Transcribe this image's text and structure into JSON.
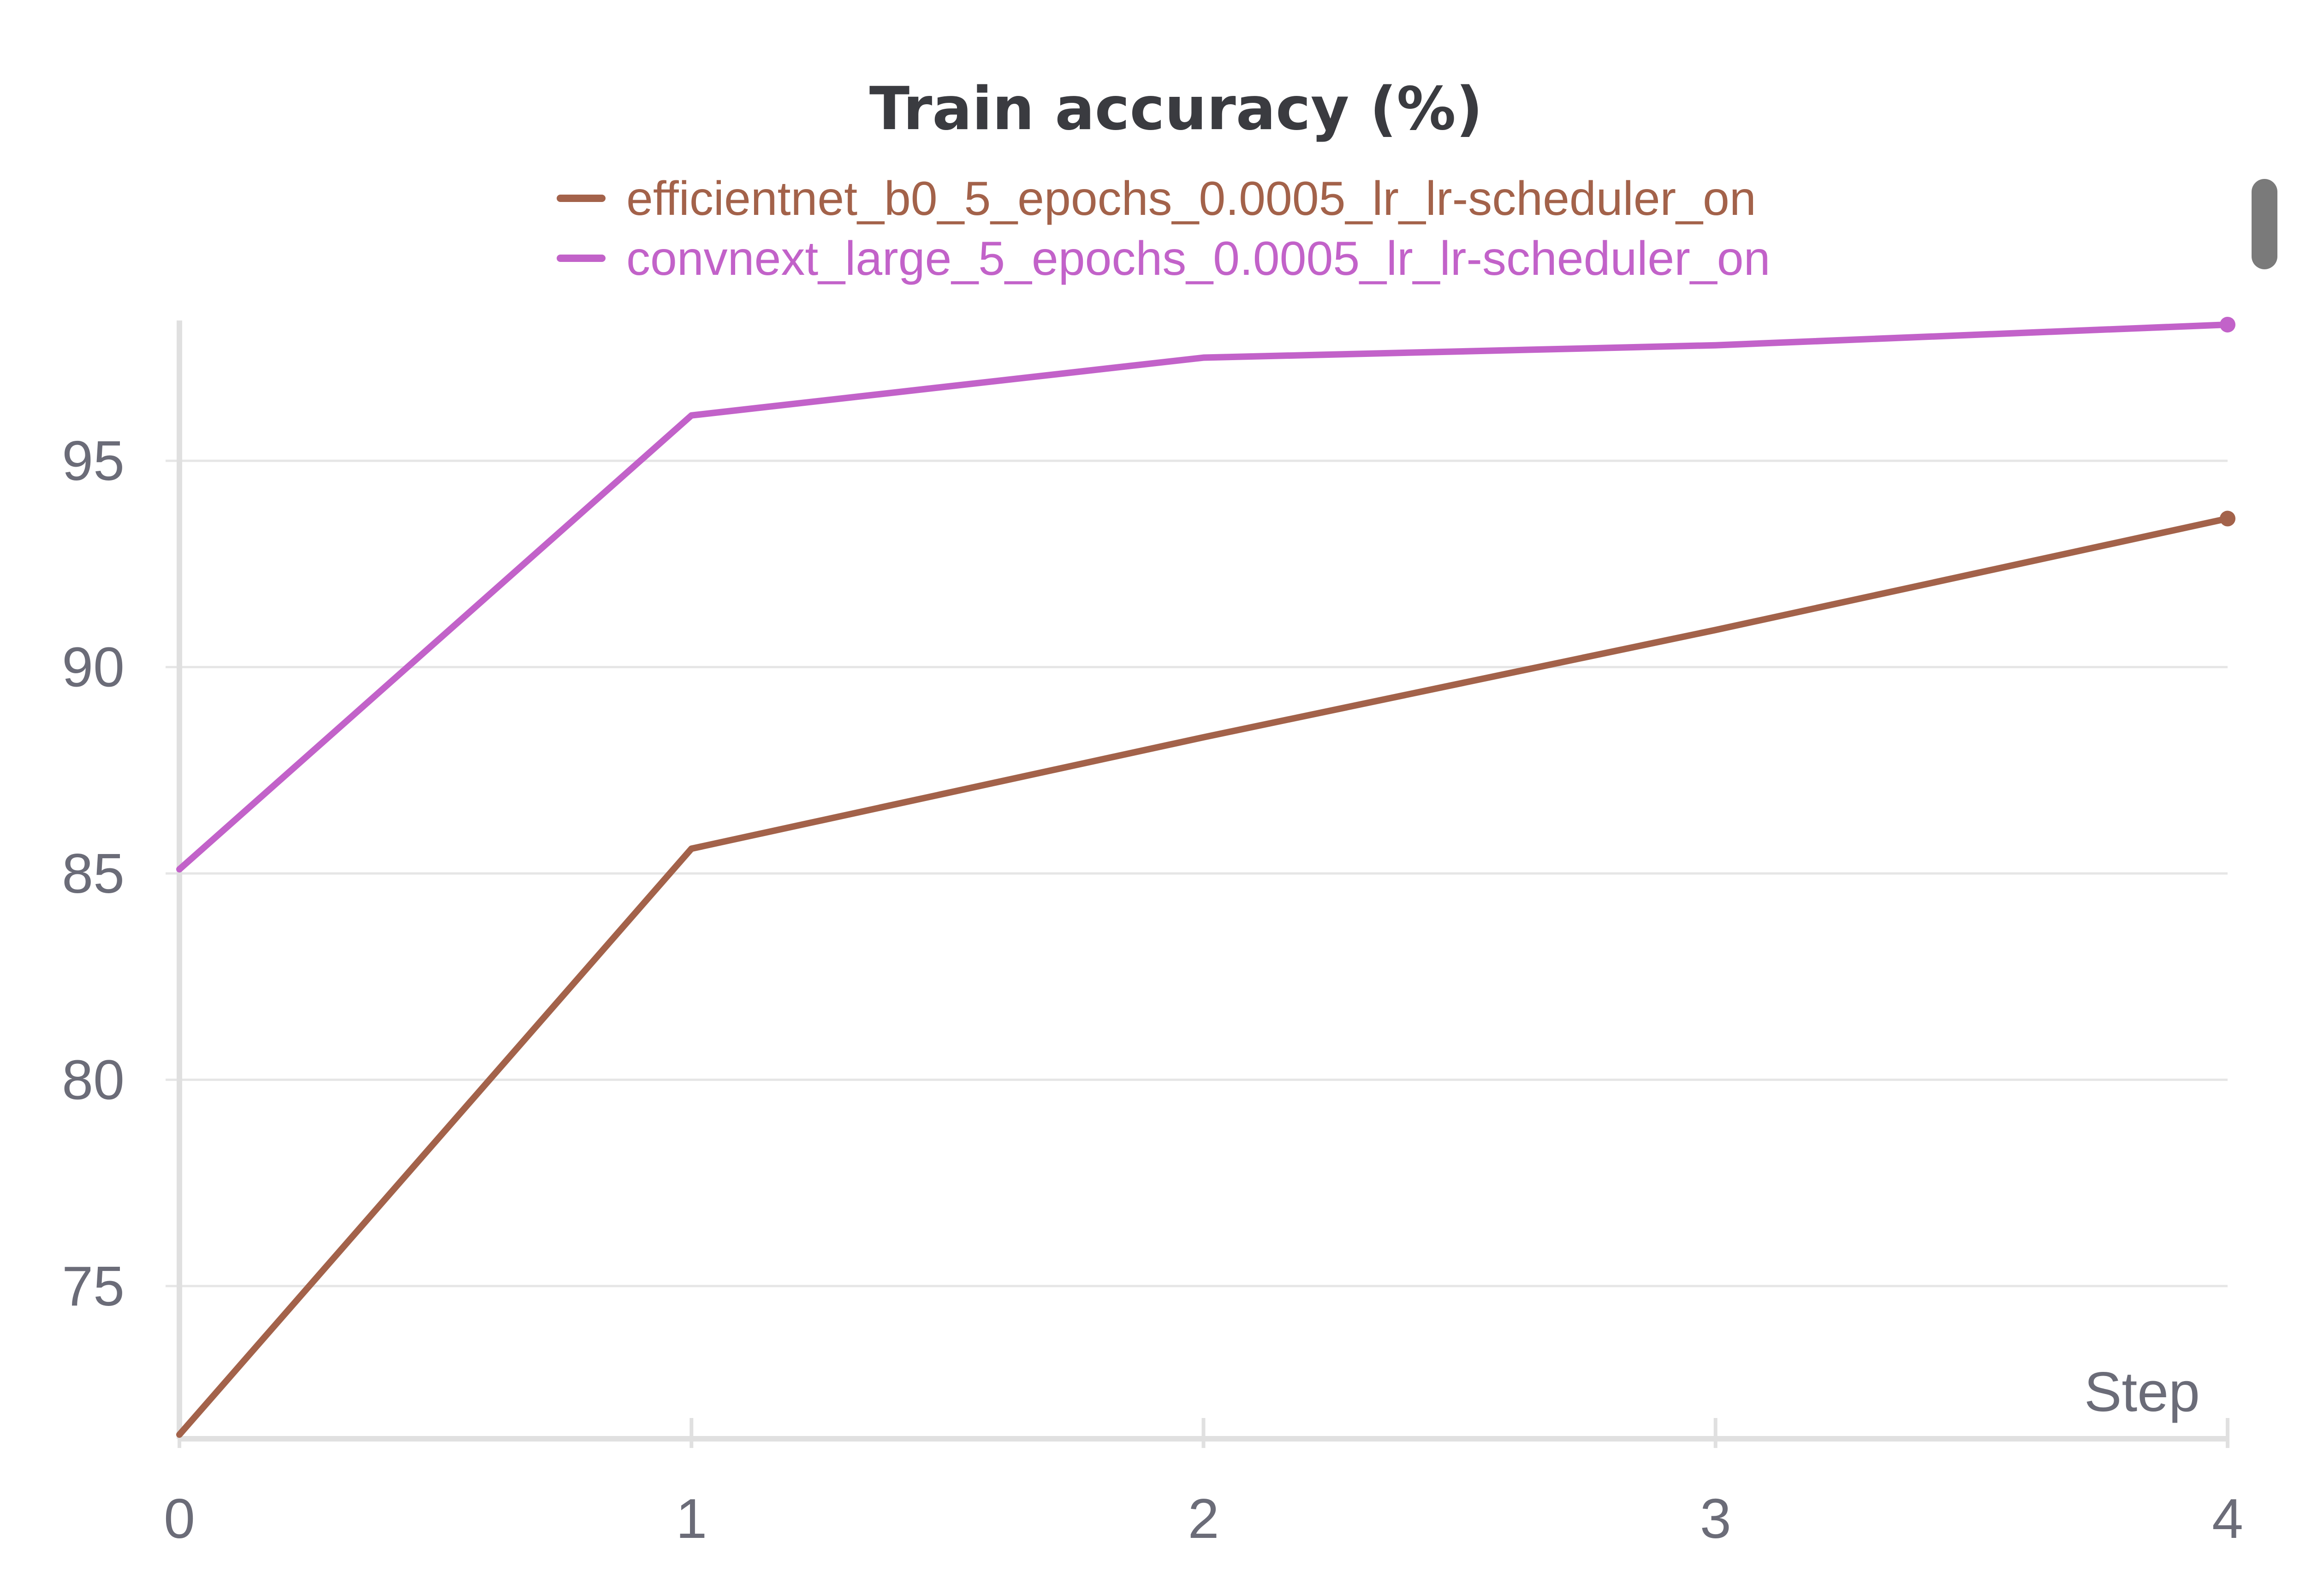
{
  "chart_data": {
    "type": "line",
    "title": "Train accuracy (%)",
    "xlabel": "Step",
    "ylabel": "",
    "x": [
      0,
      1,
      2,
      3,
      4
    ],
    "x_ticks": [
      "0",
      "1",
      "2",
      "3",
      "4"
    ],
    "y_ticks": [
      "75",
      "80",
      "85",
      "90",
      "95"
    ],
    "xlim": [
      0,
      4
    ],
    "ylim": [
      71.3,
      98.4
    ],
    "grid": "horizontal",
    "legend_position": "top-center",
    "series": [
      {
        "name": "efficientnet_b0_5_epochs_0.0005_lr_lr-scheduler_on",
        "color": "#a3624a",
        "values": [
          71.4,
          85.6,
          88.3,
          90.9,
          93.6
        ]
      },
      {
        "name": "convnext_large_5_epochs_0.0005_lr_lr-scheduler_on",
        "color": "#c262c9",
        "values": [
          85.1,
          96.1,
          97.5,
          97.8,
          98.3
        ]
      }
    ]
  },
  "colors": {
    "grid": "#e6e6e6",
    "axis": "#e0e0e0",
    "text": "#6b6c78",
    "title": "#3a3b40"
  }
}
